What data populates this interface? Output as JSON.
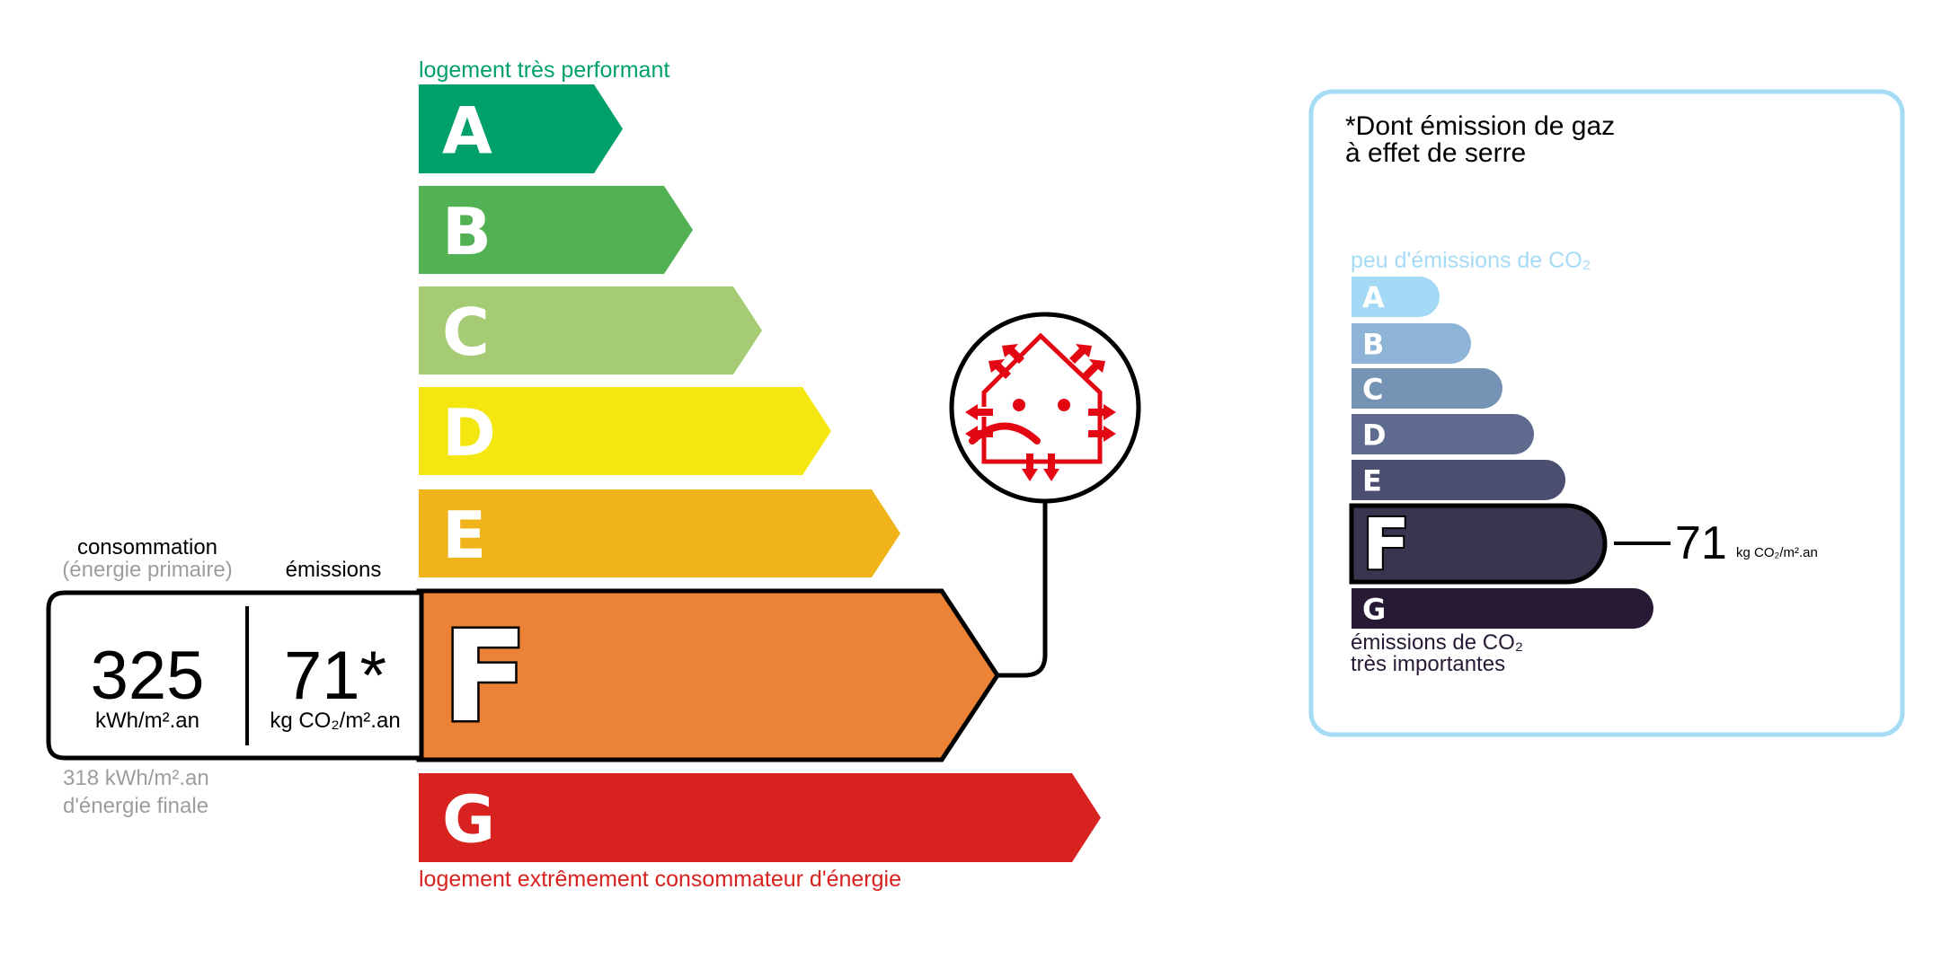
{
  "energy": {
    "top_label": "logement très performant",
    "bottom_label": "logement extrêmement consommateur d'énergie",
    "classes": [
      {
        "letter": "A",
        "color": "#00a06d"
      },
      {
        "letter": "B",
        "color": "#52b153"
      },
      {
        "letter": "C",
        "color": "#a5cc74"
      },
      {
        "letter": "D",
        "color": "#f4e70f"
      },
      {
        "letter": "E",
        "color": "#f0b41a"
      },
      {
        "letter": "F",
        "color": "#eb8235"
      },
      {
        "letter": "G",
        "color": "#d7221f"
      }
    ],
    "current_class": "F",
    "consumption_label": "consommation",
    "consumption_sublabel": "(énergie primaire)",
    "emissions_label": "émissions",
    "consumption_value": "325",
    "consumption_unit": "kWh/m².an",
    "emissions_value": "71*",
    "emissions_unit": "kg CO₂/m².an",
    "final_energy_value": "318 kWh/m².an",
    "final_energy_label": "d'énergie finale",
    "top_label_color": "#00a06d",
    "bottom_label_color": "#d7221f",
    "icon": "sad-house-heat-loss-icon"
  },
  "ges": {
    "title_line1": "*Dont émission de gaz",
    "title_line2": "à effet de serre",
    "top_label": "peu d'émissions de CO₂",
    "bottom_label_line1": "émissions de CO₂",
    "bottom_label_line2": "très importantes",
    "classes": [
      {
        "letter": "A",
        "color": "#a3d9f5"
      },
      {
        "letter": "B",
        "color": "#8db4d6"
      },
      {
        "letter": "C",
        "color": "#7593b5"
      },
      {
        "letter": "D",
        "color": "#5e6b8e"
      },
      {
        "letter": "E",
        "color": "#4b4e70"
      },
      {
        "letter": "F",
        "color": "#38354f"
      },
      {
        "letter": "G",
        "color": "#281a35"
      }
    ],
    "current_class": "F",
    "value": "71",
    "unit": "kg CO₂/m².an",
    "border_color": "#a6dbf5"
  }
}
